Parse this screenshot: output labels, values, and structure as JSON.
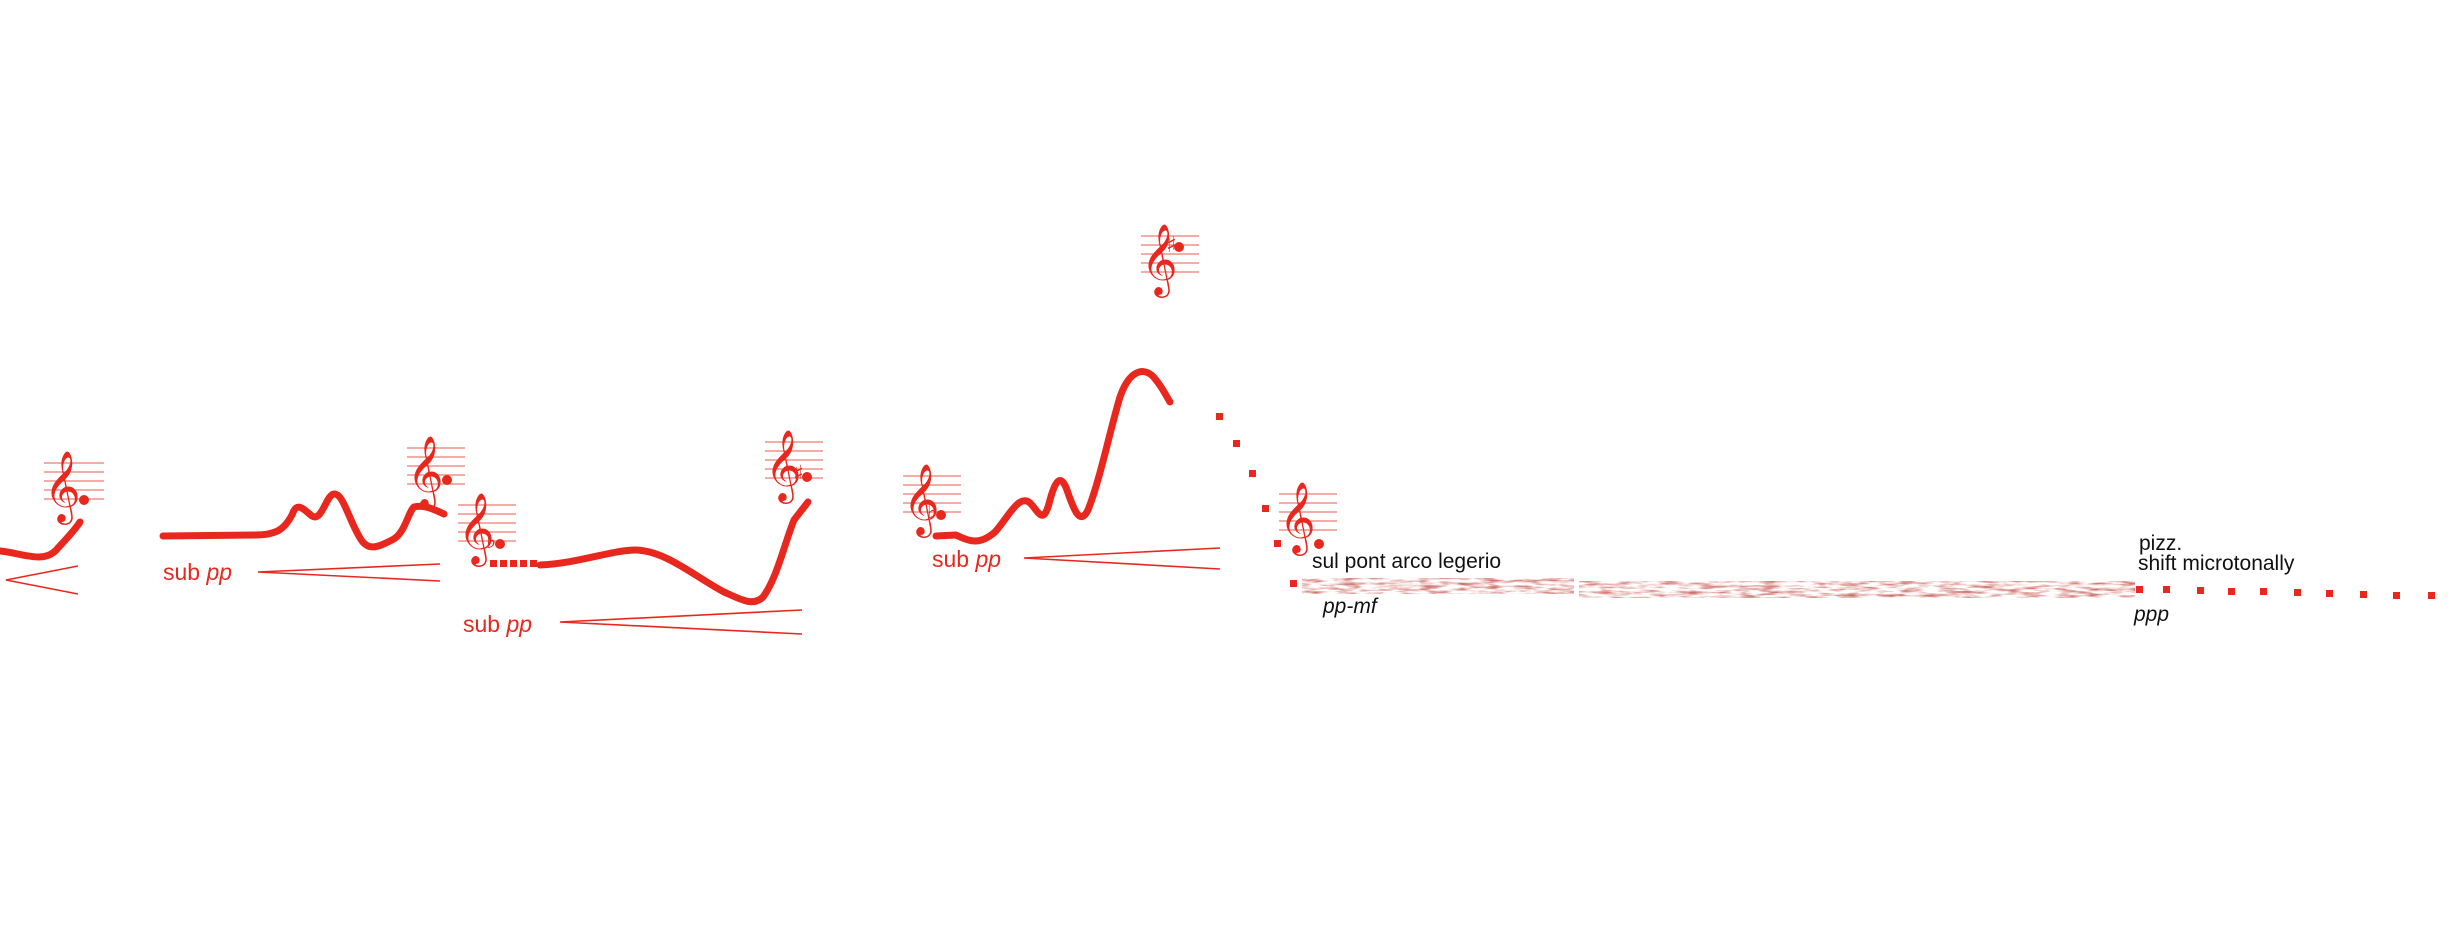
{
  "palette": {
    "line": "#e8281e",
    "staff": "#f07a70",
    "text": "#111111",
    "texture": "#9e2a24"
  },
  "icons": {
    "clef": "treble-clef-icon",
    "sharp": "sharp-accidental-icon",
    "flat": "flat-accidental-icon",
    "natural": "natural-accidental-icon"
  },
  "glyphs": {
    "clef": "𝄞",
    "sharp": "♯",
    "flat": "♭",
    "natural": "♮",
    "dot": "•"
  },
  "dynamics": {
    "sub_1": {
      "word": "sub",
      "mark": "pp"
    },
    "sub_2": {
      "word": "sub",
      "mark": "pp"
    },
    "sub_3": {
      "word": "sub",
      "mark": "pp"
    },
    "pp_mf": "pp-mf",
    "ppp": "ppp"
  },
  "techniques": {
    "sul_pont": "sul pont arco legerio",
    "pizz": "pizz.",
    "shift": "shift microtonally"
  }
}
